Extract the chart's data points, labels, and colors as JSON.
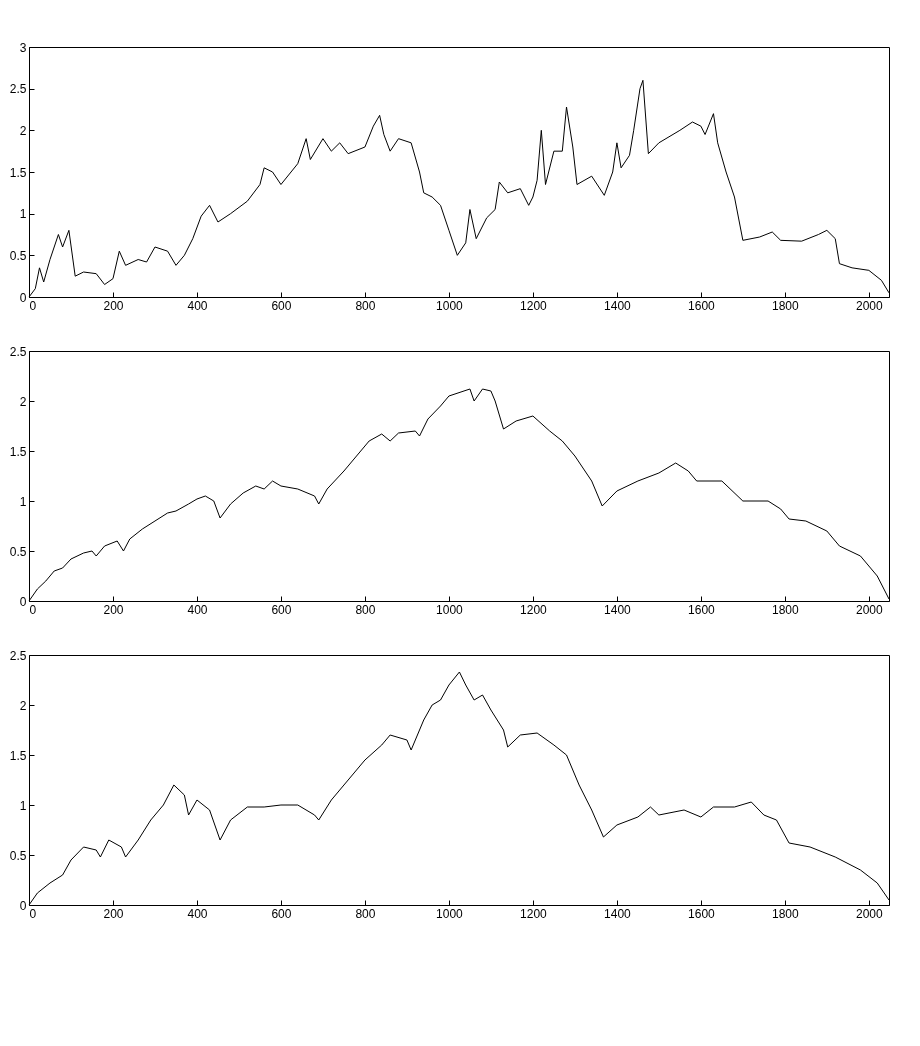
{
  "chart_data": [
    {
      "type": "line",
      "color": "#000000",
      "xlim": [
        0,
        2048
      ],
      "xticks": [
        0,
        200,
        400,
        600,
        800,
        1000,
        1200,
        1400,
        1600,
        1800,
        2000
      ],
      "ylim": [
        0,
        3
      ],
      "yticks": [
        0,
        0.5,
        1,
        1.5,
        2,
        2.5,
        3
      ],
      "x": [
        0,
        15,
        25,
        35,
        50,
        70,
        80,
        95,
        110,
        130,
        160,
        180,
        200,
        215,
        230,
        260,
        280,
        300,
        330,
        350,
        370,
        390,
        410,
        430,
        450,
        480,
        520,
        550,
        560,
        580,
        600,
        640,
        660,
        670,
        700,
        720,
        740,
        760,
        800,
        820,
        835,
        845,
        860,
        880,
        910,
        930,
        940,
        960,
        980,
        1000,
        1020,
        1040,
        1050,
        1065,
        1090,
        1110,
        1120,
        1140,
        1170,
        1190,
        1200,
        1210,
        1220,
        1230,
        1250,
        1270,
        1280,
        1295,
        1305,
        1340,
        1370,
        1390,
        1400,
        1410,
        1430,
        1440,
        1455,
        1462,
        1475,
        1500,
        1550,
        1580,
        1600,
        1610,
        1630,
        1640,
        1660,
        1680,
        1700,
        1740,
        1770,
        1790,
        1840,
        1880,
        1900,
        1920,
        1930,
        1960,
        2000,
        2030,
        2048
      ],
      "values": [
        0,
        0.1,
        0.35,
        0.18,
        0.45,
        0.75,
        0.6,
        0.8,
        0.25,
        0.3,
        0.28,
        0.15,
        0.22,
        0.55,
        0.38,
        0.45,
        0.42,
        0.6,
        0.55,
        0.38,
        0.5,
        0.7,
        0.97,
        1.1,
        0.9,
        1.0,
        1.15,
        1.35,
        1.55,
        1.5,
        1.35,
        1.6,
        1.9,
        1.65,
        1.9,
        1.75,
        1.85,
        1.72,
        1.8,
        2.05,
        2.18,
        1.95,
        1.75,
        1.9,
        1.85,
        1.5,
        1.25,
        1.2,
        1.1,
        0.8,
        0.5,
        0.65,
        1.05,
        0.7,
        0.95,
        1.05,
        1.38,
        1.25,
        1.3,
        1.1,
        1.2,
        1.4,
        2.0,
        1.35,
        1.75,
        1.75,
        2.28,
        1.8,
        1.35,
        1.45,
        1.22,
        1.5,
        1.85,
        1.55,
        1.7,
        2.0,
        2.5,
        2.6,
        1.72,
        1.85,
        2.0,
        2.1,
        2.05,
        1.95,
        2.2,
        1.85,
        1.5,
        1.2,
        0.68,
        0.72,
        0.78,
        0.68,
        0.67,
        0.75,
        0.8,
        0.7,
        0.4,
        0.35,
        0.32,
        0.2,
        0.05
      ]
    },
    {
      "type": "line",
      "color": "#000000",
      "xlim": [
        0,
        2048
      ],
      "xticks": [
        0,
        200,
        400,
        600,
        800,
        1000,
        1200,
        1400,
        1600,
        1800,
        2000
      ],
      "ylim": [
        0,
        2.5
      ],
      "yticks": [
        0,
        0.5,
        1,
        1.5,
        2,
        2.5
      ],
      "x": [
        0,
        20,
        40,
        60,
        80,
        100,
        130,
        150,
        160,
        180,
        210,
        225,
        240,
        270,
        300,
        330,
        350,
        380,
        400,
        420,
        440,
        455,
        480,
        510,
        540,
        560,
        580,
        600,
        640,
        680,
        690,
        710,
        750,
        780,
        810,
        840,
        860,
        880,
        920,
        930,
        950,
        980,
        1000,
        1050,
        1060,
        1080,
        1100,
        1110,
        1130,
        1160,
        1200,
        1240,
        1270,
        1300,
        1340,
        1365,
        1400,
        1450,
        1500,
        1540,
        1570,
        1590,
        1650,
        1700,
        1760,
        1790,
        1810,
        1850,
        1900,
        1930,
        1980,
        2020,
        2048
      ],
      "values": [
        0,
        0.12,
        0.2,
        0.3,
        0.33,
        0.42,
        0.48,
        0.5,
        0.45,
        0.55,
        0.6,
        0.5,
        0.62,
        0.72,
        0.8,
        0.88,
        0.9,
        0.97,
        1.02,
        1.05,
        1.0,
        0.83,
        0.97,
        1.08,
        1.15,
        1.12,
        1.2,
        1.15,
        1.12,
        1.05,
        0.97,
        1.12,
        1.3,
        1.45,
        1.6,
        1.67,
        1.6,
        1.68,
        1.7,
        1.65,
        1.82,
        1.95,
        2.05,
        2.12,
        2.0,
        2.12,
        2.1,
        2.0,
        1.72,
        1.8,
        1.85,
        1.7,
        1.6,
        1.45,
        1.2,
        0.95,
        1.1,
        1.2,
        1.28,
        1.38,
        1.3,
        1.2,
        1.2,
        1.0,
        1.0,
        0.92,
        0.82,
        0.8,
        0.7,
        0.55,
        0.45,
        0.25,
        0.02
      ]
    },
    {
      "type": "line",
      "color": "#000000",
      "xlim": [
        0,
        2048
      ],
      "xticks": [
        0,
        200,
        400,
        600,
        800,
        1000,
        1200,
        1400,
        1600,
        1800,
        2000
      ],
      "ylim": [
        0,
        2.5
      ],
      "yticks": [
        0,
        0.5,
        1,
        1.5,
        2,
        2.5
      ],
      "x": [
        0,
        20,
        50,
        80,
        100,
        130,
        160,
        170,
        190,
        220,
        230,
        260,
        290,
        320,
        345,
        370,
        380,
        400,
        430,
        455,
        480,
        520,
        560,
        600,
        640,
        680,
        690,
        720,
        760,
        800,
        840,
        860,
        900,
        910,
        940,
        960,
        980,
        1000,
        1025,
        1040,
        1060,
        1080,
        1100,
        1130,
        1140,
        1170,
        1210,
        1250,
        1280,
        1310,
        1340,
        1368,
        1400,
        1450,
        1480,
        1500,
        1560,
        1600,
        1630,
        1680,
        1720,
        1750,
        1780,
        1810,
        1860,
        1920,
        1980,
        2020,
        2048
      ],
      "values": [
        0,
        0.12,
        0.22,
        0.3,
        0.45,
        0.58,
        0.55,
        0.48,
        0.65,
        0.58,
        0.48,
        0.65,
        0.85,
        1.0,
        1.2,
        1.1,
        0.9,
        1.05,
        0.95,
        0.65,
        0.85,
        0.98,
        0.98,
        1.0,
        1.0,
        0.9,
        0.85,
        1.05,
        1.25,
        1.45,
        1.6,
        1.7,
        1.65,
        1.55,
        1.85,
        2.0,
        2.05,
        2.2,
        2.33,
        2.2,
        2.05,
        2.1,
        1.95,
        1.75,
        1.58,
        1.7,
        1.72,
        1.6,
        1.5,
        1.2,
        0.95,
        0.68,
        0.8,
        0.88,
        0.98,
        0.9,
        0.95,
        0.88,
        0.98,
        0.98,
        1.03,
        0.9,
        0.85,
        0.62,
        0.58,
        0.48,
        0.35,
        0.22,
        0.05
      ]
    }
  ]
}
